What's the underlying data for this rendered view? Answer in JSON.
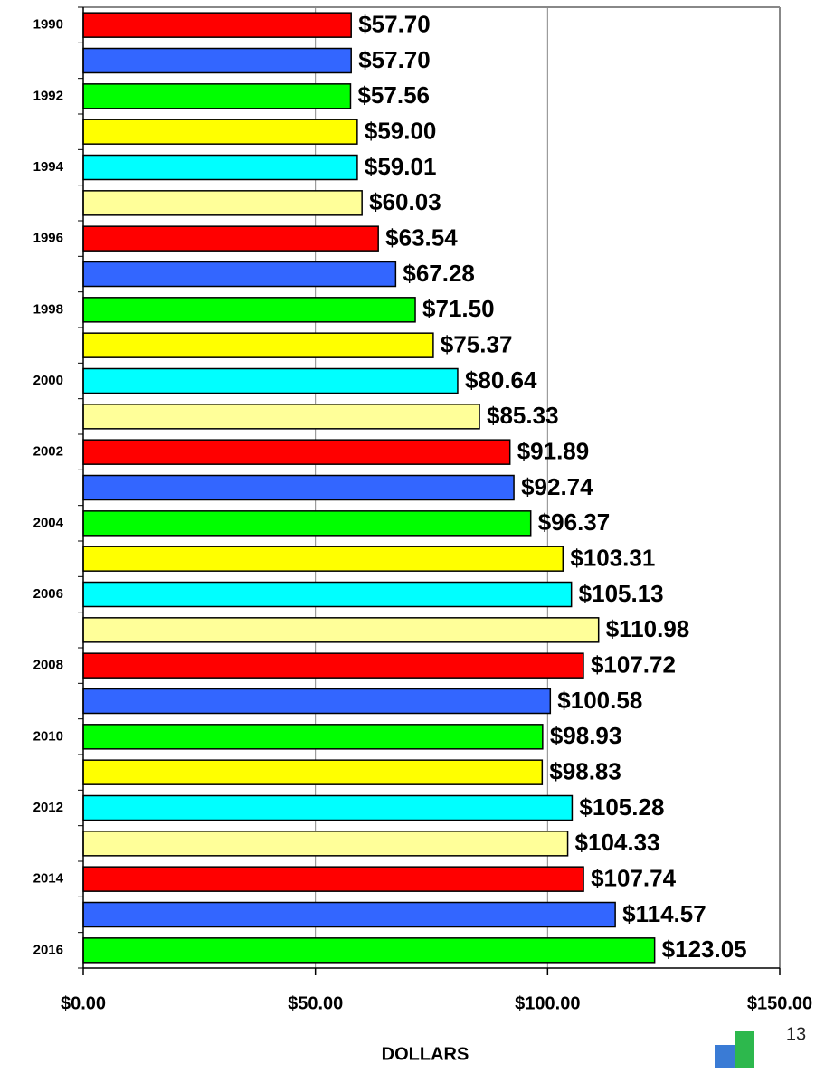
{
  "chart_data": {
    "type": "bar",
    "orientation": "horizontal",
    "categories": [
      "1990",
      null,
      "1992",
      null,
      "1994",
      null,
      "1996",
      null,
      "1998",
      null,
      "2000",
      null,
      "2002",
      null,
      "2004",
      null,
      "2006",
      null,
      "2008",
      null,
      "2010",
      null,
      "2012",
      null,
      "2014",
      null,
      "2016"
    ],
    "values": [
      57.7,
      57.7,
      57.56,
      59.0,
      59.01,
      60.03,
      63.54,
      67.28,
      71.5,
      75.37,
      80.64,
      85.33,
      91.89,
      92.74,
      96.37,
      103.31,
      105.13,
      110.98,
      107.72,
      100.58,
      98.93,
      98.83,
      105.28,
      104.33,
      107.74,
      114.57,
      123.05
    ],
    "value_labels": [
      "$57.70",
      "$57.70",
      "$57.56",
      "$59.00",
      "$59.01",
      "$60.03",
      "$63.54",
      "$67.28",
      "$71.50",
      "$75.37",
      "$80.64",
      "$85.33",
      "$91.89",
      "$92.74",
      "$96.37",
      "$103.31",
      "$105.13",
      "$110.98",
      "$107.72",
      "$100.58",
      "$98.93",
      "$98.83",
      "$105.28",
      "$104.33",
      "$107.74",
      "$114.57",
      "$123.05"
    ],
    "colors": [
      "#ff0000",
      "#3366ff",
      "#00ff00",
      "#ffff00",
      "#00ffff",
      "#ffff99"
    ],
    "xlim": [
      0,
      150
    ],
    "xticks": [
      {
        "value": 0,
        "label": "$0.00"
      },
      {
        "value": 50,
        "label": "$50.00"
      },
      {
        "value": 100,
        "label": "$100.00"
      },
      {
        "value": 150,
        "label": "$150.00"
      }
    ],
    "xlabel": "DOLLARS",
    "grid": true
  },
  "page_number": "13"
}
